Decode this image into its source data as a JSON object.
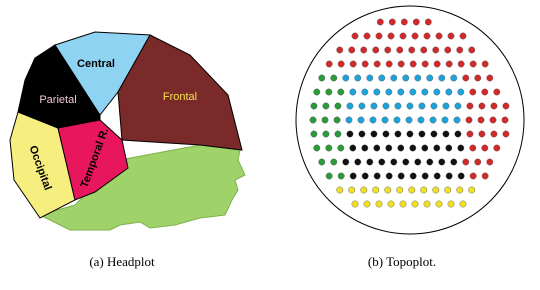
{
  "figure": {
    "headplot": {
      "regions": [
        "Central",
        "Frontal",
        "Parietal",
        "Occipital",
        "Temporal R."
      ],
      "caption": "(a) Headplot"
    },
    "topoplot": {
      "caption": "(b) Topoplot."
    }
  }
}
